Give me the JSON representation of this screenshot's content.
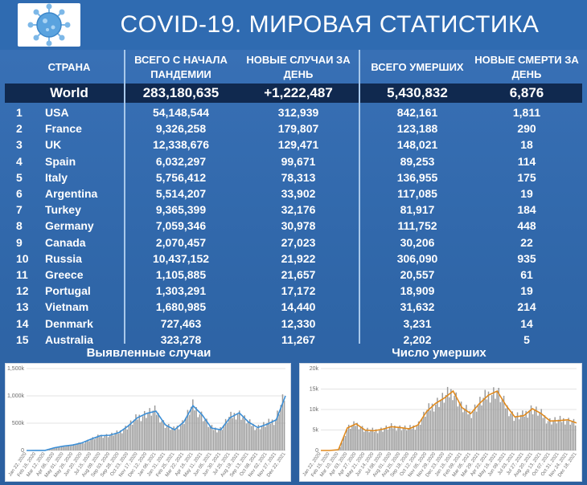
{
  "header": {
    "title": "COVID-19. МИРОВАЯ СТАТИСТИКА",
    "logo_icon": "virus-icon"
  },
  "table": {
    "columns": [
      "СТРАНА",
      "ВСЕГО С НАЧАЛА ПАНДЕМИИ",
      "НОВЫЕ СЛУЧАИ ЗА ДЕНЬ",
      "ВСЕГО УМЕРШИХ",
      "НОВЫЕ СМЕРТИ ЗА ДЕНЬ"
    ],
    "world": {
      "name": "World",
      "total": "283,180,635",
      "new": "+1,222,487",
      "deaths": "5,430,832",
      "new_deaths": "6,876"
    },
    "rows": [
      {
        "rank": "1",
        "country": "USA",
        "total": "54,148,544",
        "new": "312,939",
        "deaths": "842,161",
        "new_deaths": "1,811"
      },
      {
        "rank": "2",
        "country": "France",
        "total": "9,326,258",
        "new": "179,807",
        "deaths": "123,188",
        "new_deaths": "290"
      },
      {
        "rank": "3",
        "country": "UK",
        "total": "12,338,676",
        "new": "129,471",
        "deaths": "148,021",
        "new_deaths": "18"
      },
      {
        "rank": "4",
        "country": "Spain",
        "total": "6,032,297",
        "new": "99,671",
        "deaths": "89,253",
        "new_deaths": "114"
      },
      {
        "rank": "5",
        "country": "Italy",
        "total": "5,756,412",
        "new": "78,313",
        "deaths": "136,955",
        "new_deaths": "175"
      },
      {
        "rank": "6",
        "country": "Argentina",
        "total": "5,514,207",
        "new": "33,902",
        "deaths": "117,085",
        "new_deaths": "19"
      },
      {
        "rank": "7",
        "country": "Turkey",
        "total": "9,365,399",
        "new": "32,176",
        "deaths": "81,917",
        "new_deaths": "184"
      },
      {
        "rank": "8",
        "country": "Germany",
        "total": "7,059,346",
        "new": "30,978",
        "deaths": "111,752",
        "new_deaths": "448"
      },
      {
        "rank": "9",
        "country": "Canada",
        "total": "2,070,457",
        "new": "27,023",
        "deaths": "30,206",
        "new_deaths": "22"
      },
      {
        "rank": "10",
        "country": "Russia",
        "total": "10,437,152",
        "new": "21,922",
        "deaths": "306,090",
        "new_deaths": "935"
      },
      {
        "rank": "11",
        "country": "Greece",
        "total": "1,105,885",
        "new": "21,657",
        "deaths": "20,557",
        "new_deaths": "61"
      },
      {
        "rank": "12",
        "country": "Portugal",
        "total": "1,303,291",
        "new": "17,172",
        "deaths": "18,909",
        "new_deaths": "19"
      },
      {
        "rank": "13",
        "country": "Vietnam",
        "total": "1,680,985",
        "new": "14,440",
        "deaths": "31,632",
        "new_deaths": "214"
      },
      {
        "rank": "14",
        "country": "Denmark",
        "total": "727,463",
        "new": "12,330",
        "deaths": "3,231",
        "new_deaths": "14"
      },
      {
        "rank": "15",
        "country": "Australia",
        "total": "323,278",
        "new": "11,267",
        "deaths": "2,202",
        "new_deaths": "5"
      }
    ]
  },
  "chart_data": [
    {
      "type": "bar",
      "title": "Выявленные случаи",
      "xlabel": "",
      "ylabel": "",
      "yticks": [
        "0",
        "500k",
        "1,000k",
        "1,500k"
      ],
      "ylim": [
        0,
        1500000
      ],
      "xticks": [
        "Jan 22, 2020",
        "Feb 16, 2020",
        "Mar 12, 2020",
        "Apr 06, 2020",
        "May 01, 2020",
        "May 26, 2020",
        "Jun 20, 2020",
        "Jul 15, 2020",
        "Aug 09, 2020",
        "Sep 03, 2020",
        "Sep 28, 2020",
        "Oct 23, 2020",
        "Nov 17, 2020",
        "Dec 12, 2020",
        "Jan 06, 2021",
        "Jan 31, 2021",
        "Feb 25, 2021",
        "Mar 22, 2021",
        "Apr 16, 2021",
        "May 11, 2021",
        "Jun 05, 2021",
        "Jun 30, 2021",
        "Jul 25, 2021",
        "Aug 19, 2021",
        "Sep 13, 2021",
        "Oct 08, 2021",
        "Nov 02, 2021",
        "Nov 27, 2021",
        "Dec 22, 2021"
      ],
      "values": [
        0,
        1000,
        2000,
        50000,
        80000,
        100000,
        140000,
        210000,
        270000,
        280000,
        330000,
        450000,
        600000,
        680000,
        720000,
        470000,
        380000,
        520000,
        820000,
        650000,
        410000,
        380000,
        600000,
        690000,
        520000,
        420000,
        480000,
        560000,
        1000000
      ],
      "grid": true
    },
    {
      "type": "bar",
      "title": "Число умерших",
      "xlabel": "",
      "ylabel": "",
      "yticks": [
        "0",
        "5k",
        "10k",
        "15k",
        "20k"
      ],
      "ylim": [
        0,
        20000
      ],
      "xticks": [
        "Jan 22, 2020",
        "Feb 15, 2020",
        "Mar 10, 2020",
        "Apr 03, 2020",
        "Apr 27, 2020",
        "May 21, 2020",
        "Jun 14, 2020",
        "Jul 08, 2020",
        "Aug 01, 2020",
        "Aug 25, 2020",
        "Sep 18, 2020",
        "Oct 12, 2020",
        "Nov 05, 2020",
        "Nov 29, 2020",
        "Dec 23, 2020",
        "Jan 16, 2021",
        "Feb 09, 2021",
        "Mar 05, 2021",
        "Mar 29, 2021",
        "Apr 22, 2021",
        "May 16, 2021",
        "Jun 09, 2021",
        "Jul 03, 2021",
        "Jul 27, 2021",
        "Aug 20, 2021",
        "Sep 13, 2021",
        "Oct 07, 2021",
        "Oct 31, 2021",
        "Nov 24, 2021",
        "Dec 18, 2021"
      ],
      "values": [
        0,
        0,
        200,
        5500,
        6500,
        5000,
        4800,
        5200,
        5800,
        5600,
        5300,
        6200,
        9500,
        11500,
        12800,
        14500,
        10500,
        9000,
        11500,
        13500,
        14500,
        11000,
        8200,
        8500,
        10200,
        9000,
        7200,
        7300,
        7500,
        6700
      ],
      "grid": true
    }
  ]
}
